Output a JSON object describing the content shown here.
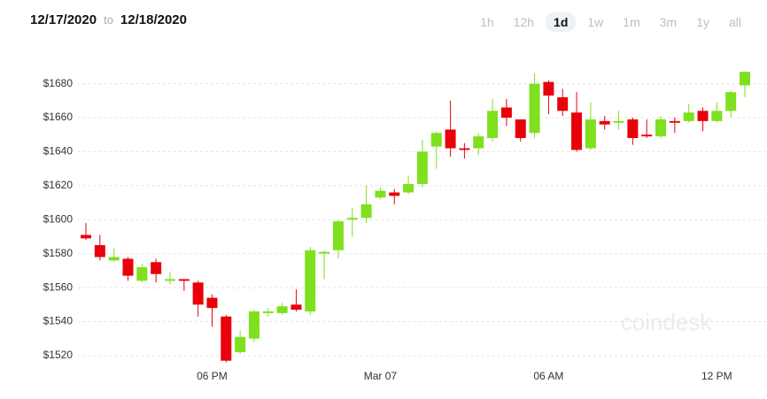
{
  "header": {
    "from": "12/17/2020",
    "separator": "to",
    "to": "12/18/2020"
  },
  "ranges": [
    {
      "label": "1h"
    },
    {
      "label": "12h"
    },
    {
      "label": "1d",
      "selected": true
    },
    {
      "label": "1w"
    },
    {
      "label": "1m"
    },
    {
      "label": "3m"
    },
    {
      "label": "1y"
    },
    {
      "label": "all"
    }
  ],
  "watermark": "coindesk",
  "chart_data": {
    "type": "candlestick",
    "categories": [
      null,
      null,
      null,
      null,
      null,
      null,
      null,
      null,
      null,
      "06 PM",
      null,
      null,
      null,
      null,
      null,
      null,
      null,
      null,
      null,
      null,
      null,
      "Mar 07",
      null,
      null,
      null,
      null,
      null,
      null,
      null,
      null,
      null,
      null,
      null,
      "06 AM",
      null,
      null,
      null,
      null,
      null,
      null,
      null,
      null,
      null,
      null,
      null,
      "12 PM",
      null,
      null
    ],
    "open": [
      1591,
      1585,
      1576,
      1577,
      1564,
      1575,
      1564,
      1565,
      1563,
      1554,
      1543,
      1522,
      1530,
      1545,
      1545,
      1550,
      1546,
      1580,
      1582,
      1600,
      1601,
      1613,
      1616,
      1616,
      1621,
      1643,
      1653,
      1642,
      1642,
      1648,
      1666,
      1659,
      1651,
      1681,
      1672,
      1663,
      1642,
      1658,
      1657,
      1659,
      1650,
      1649,
      1658,
      1658,
      1664,
      1658,
      1664,
      1679
    ],
    "high": [
      1598,
      1591,
      1583,
      1578,
      1574,
      1577,
      1569,
      1565,
      1564,
      1556,
      1544,
      1535,
      1547,
      1548,
      1551,
      1559,
      1584,
      1582,
      1600,
      1607,
      1620,
      1619,
      1618,
      1626,
      1647,
      1652,
      1670,
      1645,
      1651,
      1671,
      1671,
      1659,
      1686,
      1682,
      1677,
      1675,
      1669,
      1661,
      1664,
      1660,
      1659,
      1661,
      1660,
      1668,
      1666,
      1669,
      1676,
      1687
    ],
    "low": [
      1588,
      1576,
      1575,
      1564,
      1563,
      1563,
      1562,
      1558,
      1543,
      1537,
      1516,
      1521,
      1528,
      1543,
      1544,
      1546,
      1544,
      1565,
      1577,
      1590,
      1598,
      1612,
      1609,
      1615,
      1619,
      1630,
      1637,
      1636,
      1638,
      1646,
      1655,
      1646,
      1648,
      1662,
      1661,
      1640,
      1641,
      1653,
      1653,
      1644,
      1648,
      1648,
      1651,
      1657,
      1652,
      1657,
      1660,
      1672
    ],
    "close": [
      1589,
      1578,
      1578,
      1567,
      1572,
      1568,
      1565,
      1564,
      1550,
      1548,
      1517,
      1531,
      1546,
      1546,
      1549,
      1547,
      1582,
      1581,
      1599,
      1601,
      1609,
      1617,
      1614,
      1621,
      1640,
      1651,
      1642,
      1641,
      1649,
      1664,
      1660,
      1648,
      1680,
      1673,
      1664,
      1641,
      1659,
      1656,
      1658,
      1648,
      1649,
      1659,
      1657,
      1663,
      1658,
      1664,
      1675,
      1687
    ],
    "up_color": "#7ee01e",
    "down_color": "#e8000b",
    "ylim": [
      1508,
      1698
    ],
    "yticks": [
      {
        "value": 1520,
        "label": "$1520"
      },
      {
        "value": 1540,
        "label": "$1540"
      },
      {
        "value": 1560,
        "label": "$1560"
      },
      {
        "value": 1580,
        "label": "$1580"
      },
      {
        "value": 1600,
        "label": "$1600"
      },
      {
        "value": 1620,
        "label": "$1620"
      },
      {
        "value": 1640,
        "label": "$1640"
      },
      {
        "value": 1660,
        "label": "$1660"
      },
      {
        "value": 1680,
        "label": "$1680"
      }
    ],
    "grid": true
  }
}
